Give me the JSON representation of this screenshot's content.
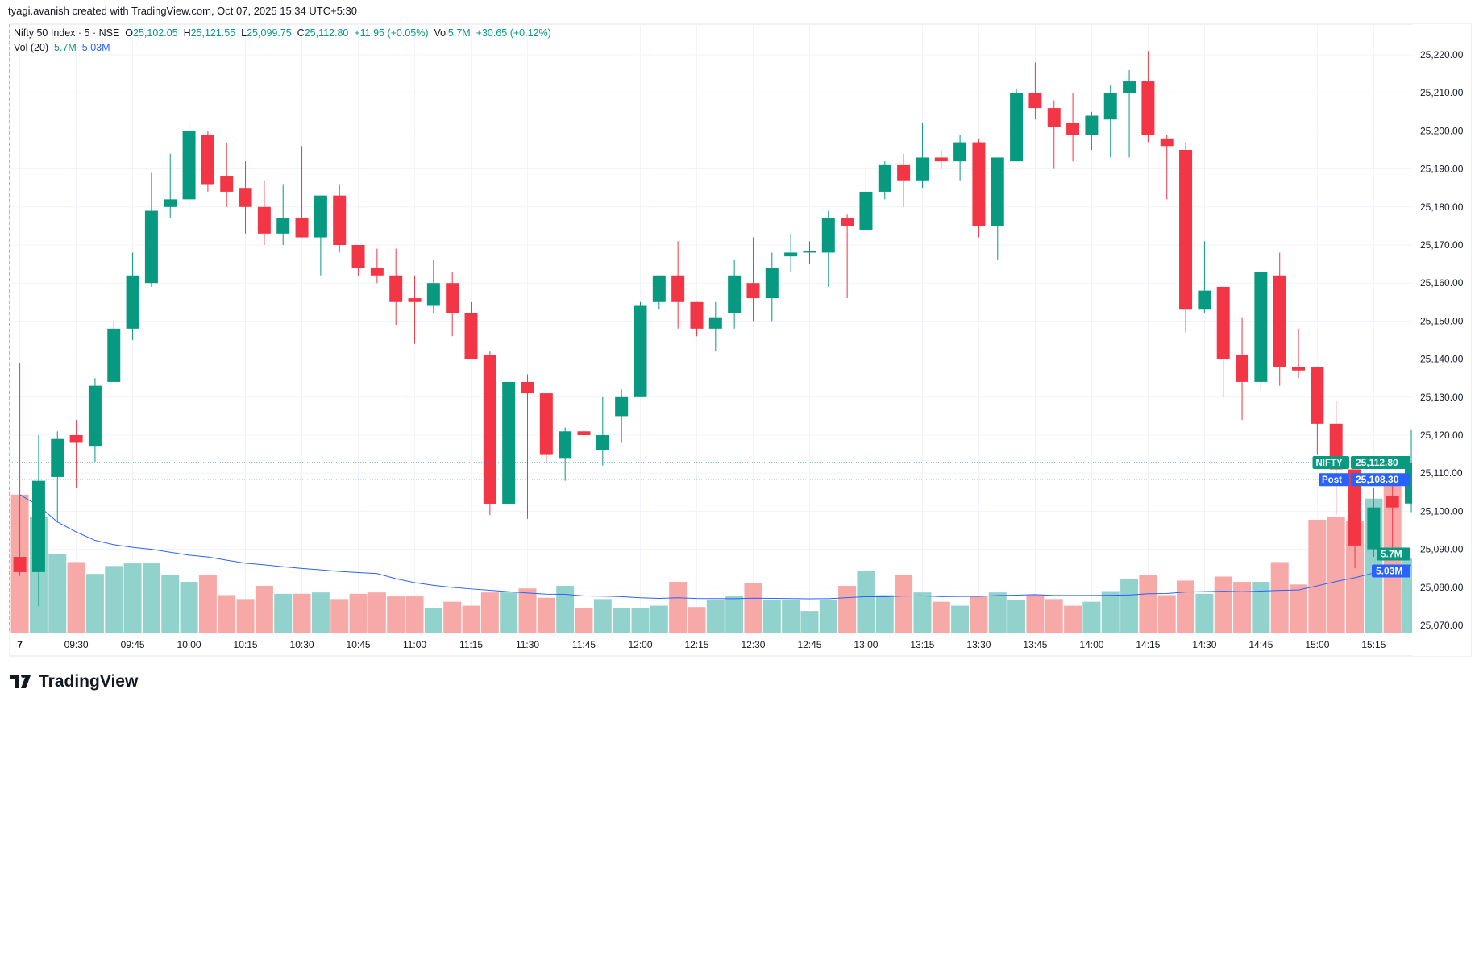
{
  "header": "tyagi.avanish created with TradingView.com, Oct 07, 2025 15:34 UTC+5:30",
  "legend": {
    "symbol": "Nifty 50 Index · 5 · NSE",
    "o_label": "O",
    "o": "25,102.05",
    "h_label": "H",
    "h": "25,121.55",
    "l_label": "L",
    "l": "25,099.75",
    "c_label": "C",
    "c": "25,112.80",
    "change": "+11.95 (+0.05%)",
    "vol_label": "Vol",
    "vol": "5.7M",
    "vol_change": "+30.65 (+0.12%)",
    "vol20_label": "Vol (20)",
    "vol20_a": "5.7M",
    "vol20_b": "5.03M"
  },
  "logo": "TradingView",
  "colors": {
    "up": "#089981",
    "down": "#f23645",
    "up_vol": "#92d2cc",
    "down_vol": "#f7a9a7",
    "ma": "#2962ff"
  },
  "chart_data": {
    "type": "candlestick",
    "title": "Nifty 50 Index · 5 · NSE",
    "ylim": [
      25070,
      25220
    ],
    "yticks": [
      "25,220.00",
      "25,210.00",
      "25,200.00",
      "25,190.00",
      "25,180.00",
      "25,170.00",
      "25,160.00",
      "25,150.00",
      "25,140.00",
      "25,130.00",
      "25,120.00",
      "25,110.00",
      "25,100.00",
      "25,090.00",
      "25,080.00",
      "25,070.00"
    ],
    "xticks": [
      {
        "i": 0,
        "label": "7"
      },
      {
        "i": 3,
        "label": "09:30"
      },
      {
        "i": 6,
        "label": "09:45"
      },
      {
        "i": 9,
        "label": "10:00"
      },
      {
        "i": 12,
        "label": "10:15"
      },
      {
        "i": 15,
        "label": "10:30"
      },
      {
        "i": 18,
        "label": "10:45"
      },
      {
        "i": 21,
        "label": "11:00"
      },
      {
        "i": 24,
        "label": "11:15"
      },
      {
        "i": 27,
        "label": "11:30"
      },
      {
        "i": 30,
        "label": "11:45"
      },
      {
        "i": 33,
        "label": "12:00"
      },
      {
        "i": 36,
        "label": "12:15"
      },
      {
        "i": 39,
        "label": "12:30"
      },
      {
        "i": 42,
        "label": "12:45"
      },
      {
        "i": 45,
        "label": "13:00"
      },
      {
        "i": 48,
        "label": "13:15"
      },
      {
        "i": 51,
        "label": "13:30"
      },
      {
        "i": 54,
        "label": "13:45"
      },
      {
        "i": 57,
        "label": "14:00"
      },
      {
        "i": 60,
        "label": "14:15"
      },
      {
        "i": 63,
        "label": "14:30"
      },
      {
        "i": 66,
        "label": "14:45"
      },
      {
        "i": 69,
        "label": "15:00"
      },
      {
        "i": 72,
        "label": "15:15"
      }
    ],
    "ohlc": [
      [
        25088,
        25139,
        25083,
        25084
      ],
      [
        25084,
        25120,
        25075,
        25108
      ],
      [
        25109,
        25121,
        25097,
        25119
      ],
      [
        25120,
        25124,
        25106,
        25118
      ],
      [
        25117,
        25135,
        25113,
        25133
      ],
      [
        25134,
        25150,
        25134,
        25148
      ],
      [
        25148,
        25168,
        25145,
        25162
      ],
      [
        25160,
        25189,
        25159,
        25179
      ],
      [
        25180,
        25194,
        25177,
        25182
      ],
      [
        25182,
        25202,
        25180,
        25200
      ],
      [
        25199,
        25200,
        25184,
        25186
      ],
      [
        25188,
        25197,
        25180,
        25184
      ],
      [
        25185,
        25192,
        25173,
        25180
      ],
      [
        25180,
        25187,
        25170,
        25173
      ],
      [
        25173,
        25186,
        25170,
        25177
      ],
      [
        25177,
        25196,
        25172,
        25172
      ],
      [
        25172,
        25183,
        25162,
        25183
      ],
      [
        25183,
        25186,
        25168,
        25170
      ],
      [
        25170,
        25170,
        25162,
        25164
      ],
      [
        25164,
        25169,
        25160,
        25162
      ],
      [
        25162,
        25169,
        25149,
        25155
      ],
      [
        25156,
        25162,
        25144,
        25155
      ],
      [
        25154,
        25166,
        25152,
        25160
      ],
      [
        25160,
        25163,
        25146,
        25152
      ],
      [
        25152,
        25155,
        25140,
        25140
      ],
      [
        25141,
        25142,
        25099,
        25102
      ],
      [
        25102,
        25134,
        25102,
        25134
      ],
      [
        25134,
        25136,
        25098,
        25131
      ],
      [
        25131,
        25131,
        25113,
        25115
      ],
      [
        25114,
        25122,
        25108,
        25121
      ],
      [
        25121,
        25129,
        25108,
        25120
      ],
      [
        25116,
        25130,
        25112,
        25120
      ],
      [
        25125,
        25132,
        25118,
        25130
      ],
      [
        25130,
        25155,
        25130,
        25154
      ],
      [
        25155,
        25162,
        25153,
        25162
      ],
      [
        25162,
        25171,
        25148,
        25155
      ],
      [
        25155,
        25155,
        25146,
        25148
      ],
      [
        25148,
        25155,
        25142,
        25151
      ],
      [
        25152,
        25166,
        25148,
        25162
      ],
      [
        25160,
        25172,
        25150,
        25156
      ],
      [
        25156,
        25168,
        25150,
        25164
      ],
      [
        25167,
        25173,
        25163,
        25168
      ],
      [
        25168,
        25171,
        25165,
        25168.5
      ],
      [
        25168,
        25179,
        25159,
        25177
      ],
      [
        25177,
        25178,
        25156,
        25175
      ],
      [
        25174,
        25191,
        25172,
        25184
      ],
      [
        25184,
        25192,
        25182,
        25191
      ],
      [
        25191,
        25194,
        25180,
        25187
      ],
      [
        25187,
        25202,
        25185,
        25193
      ],
      [
        25193,
        25195,
        25190,
        25192
      ],
      [
        25192,
        25199,
        25187,
        25197
      ],
      [
        25197,
        25198,
        25172,
        25175
      ],
      [
        25175,
        25193,
        25166,
        25193
      ],
      [
        25192,
        25211,
        25192,
        25210
      ],
      [
        25210,
        25218,
        25203,
        25206
      ],
      [
        25206,
        25208,
        25190,
        25201
      ],
      [
        25202,
        25210,
        25192,
        25199
      ],
      [
        25199,
        25205,
        25195,
        25204
      ],
      [
        25203,
        25212,
        25193,
        25210
      ],
      [
        25210,
        25216,
        25193,
        25213
      ],
      [
        25213,
        25221,
        25197,
        25199
      ],
      [
        25198,
        25199,
        25182,
        25196
      ],
      [
        25195,
        25197,
        25147,
        25153
      ],
      [
        25153,
        25171,
        25152,
        25158
      ],
      [
        25159,
        25159,
        25130,
        25140
      ],
      [
        25141,
        25151,
        25124,
        25134
      ],
      [
        25134,
        25163,
        25132,
        25163
      ],
      [
        25162,
        25168,
        25133,
        25138
      ],
      [
        25138,
        25148,
        25135,
        25137
      ],
      [
        25138,
        25138,
        25115,
        25123
      ],
      [
        25123,
        25129,
        25099,
        25111
      ],
      [
        25111,
        25111,
        25085,
        25091
      ],
      [
        25090,
        25106,
        25088,
        25101
      ],
      [
        25104,
        25108,
        25090,
        25101
      ],
      [
        25102.05,
        25121.55,
        25099.75,
        25112.8
      ]
    ],
    "volume_millions": [
      10.5,
      8.8,
      6.0,
      5.4,
      4.5,
      5.1,
      5.3,
      5.3,
      4.4,
      3.9,
      4.4,
      2.9,
      2.6,
      3.6,
      3.0,
      3.0,
      3.1,
      2.6,
      3.0,
      3.1,
      2.8,
      2.8,
      1.9,
      2.4,
      2.1,
      3.1,
      3.1,
      3.4,
      2.7,
      3.6,
      1.9,
      2.6,
      1.9,
      1.9,
      2.1,
      3.9,
      2.0,
      2.5,
      2.8,
      3.8,
      2.5,
      2.5,
      1.7,
      2.5,
      3.6,
      4.7,
      2.9,
      4.4,
      3.1,
      2.4,
      2.1,
      2.8,
      3.1,
      2.5,
      2.9,
      2.6,
      2.1,
      2.4,
      3.2,
      4.1,
      4.4,
      2.9,
      4.0,
      3.0,
      4.3,
      3.9,
      3.9,
      5.4,
      3.7,
      8.6,
      8.8,
      8.5,
      10.2,
      11.7,
      5.7
    ],
    "ma_period": 20,
    "last_price": {
      "label": "NIFTY",
      "value": 25112.8,
      "text": "25,112.80"
    },
    "post_price": {
      "label": "Post",
      "value": 25108.3,
      "text": "25,108.30"
    },
    "vol_labels": {
      "vol": "5.7M",
      "ma": "5.03M",
      "vol_value": 5.7,
      "ma_value": 5.03
    }
  }
}
